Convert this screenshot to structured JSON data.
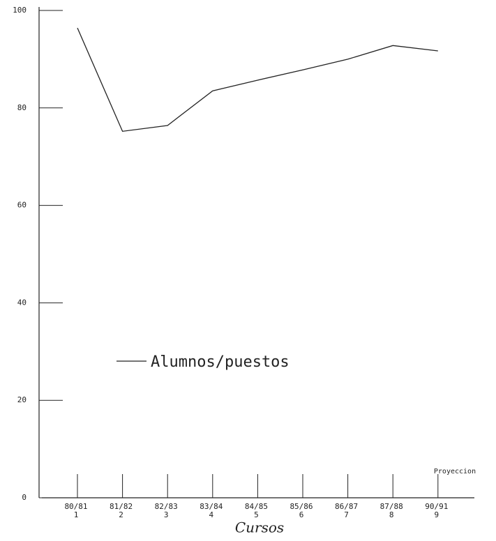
{
  "chart_data": {
    "type": "line",
    "categories": [
      "80/81",
      "81/82",
      "82/83",
      "83/84",
      "84/85",
      "85/86",
      "86/87",
      "87/88",
      "90/91"
    ],
    "category_numbers": [
      "1",
      "2",
      "3",
      "4",
      "5",
      "6",
      "7",
      "8",
      "9"
    ],
    "series": [
      {
        "name": "Alumnos/puestos",
        "color": "#222222",
        "values": [
          96.4,
          75.2,
          76.4,
          83.5,
          85.7,
          87.8,
          90,
          92.8,
          91.7
        ]
      }
    ],
    "ylim": [
      0,
      100
    ],
    "yticks": [
      0,
      20,
      40,
      60,
      80,
      100
    ],
    "x_label": "Cursos",
    "annotation": "Proyeccion"
  }
}
